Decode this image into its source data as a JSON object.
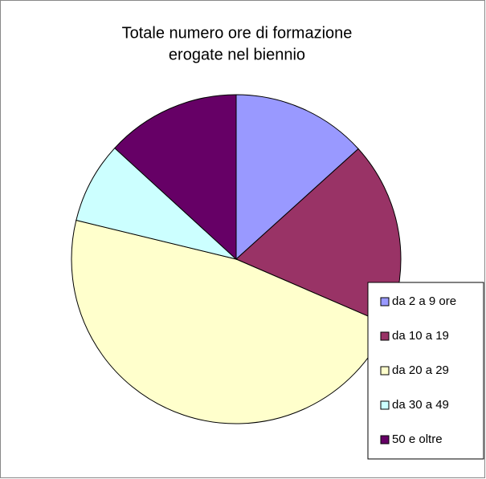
{
  "chart_data": {
    "type": "pie",
    "title": [
      "Totale numero ore di formazione",
      "erogate nel biennio"
    ],
    "categories": [
      "da 2 a 9 ore",
      "da 10 a 19",
      "da 20 a 29",
      "da 30 a 49",
      "50 e oltre"
    ],
    "values": [
      13.3,
      18.2,
      47.3,
      8,
      13.2
    ],
    "colors": [
      "#9999ff",
      "#993366",
      "#ffffcc",
      "#ccffff",
      "#660066"
    ],
    "legend": "right"
  }
}
